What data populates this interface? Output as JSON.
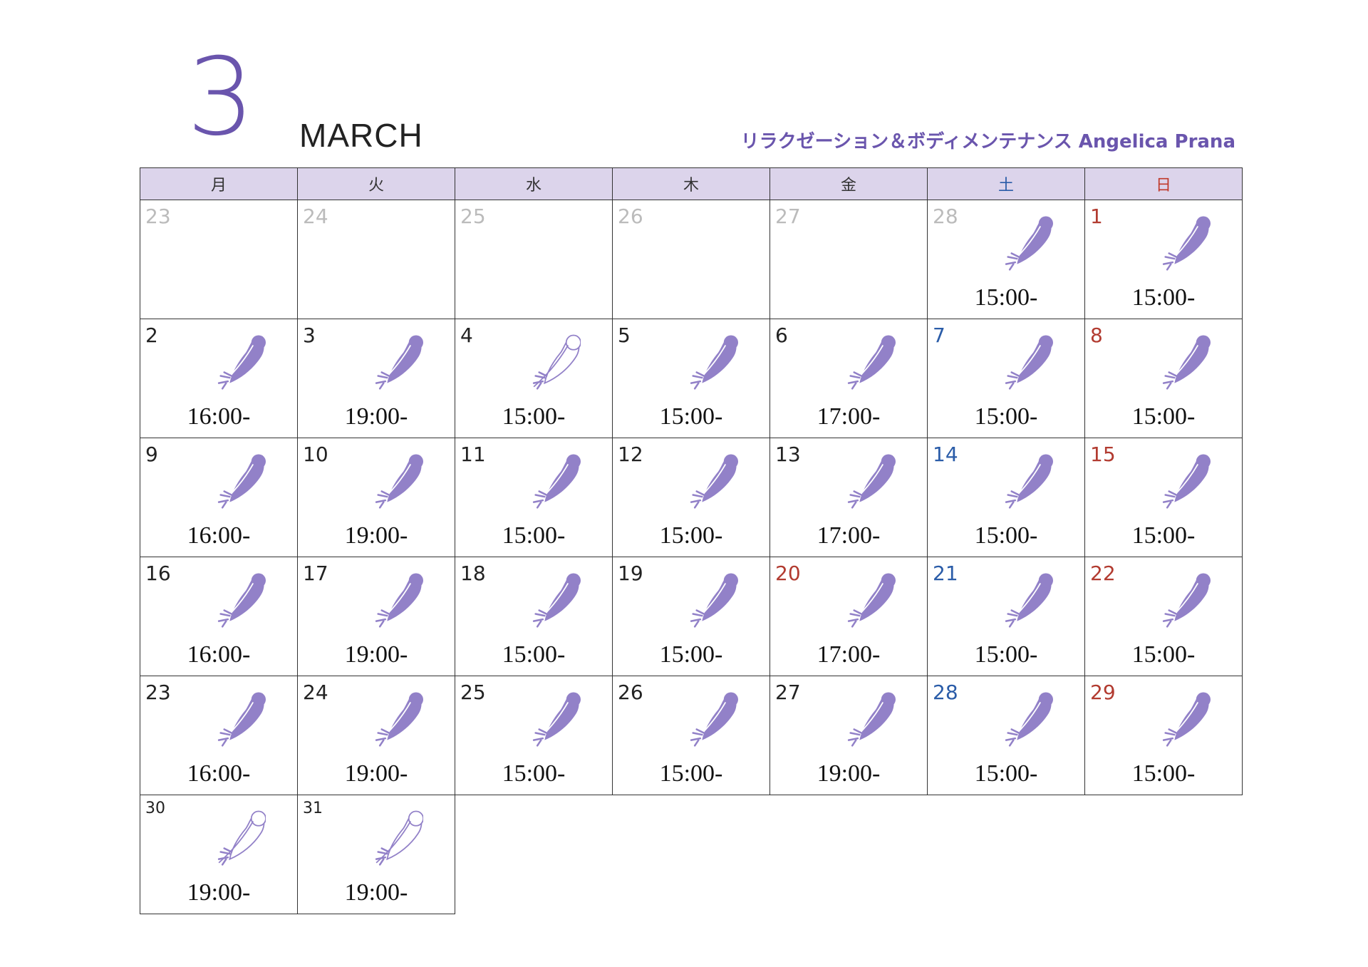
{
  "header": {
    "month_number": "3",
    "month_name": "MARCH",
    "brand": "リラクゼーション＆ボディメンテナンス Angelica Prana"
  },
  "weekdays": [
    {
      "label": "月",
      "color": "#333333"
    },
    {
      "label": "火",
      "color": "#333333"
    },
    {
      "label": "水",
      "color": "#333333"
    },
    {
      "label": "木",
      "color": "#333333"
    },
    {
      "label": "金",
      "color": "#333333"
    },
    {
      "label": "土",
      "color": "#2a5ca8"
    },
    {
      "label": "日",
      "color": "#c0392b"
    }
  ],
  "colors": {
    "accent": "#6a55ad",
    "feather_fill": "#9281c8",
    "header_bg": "#dcd4eb",
    "saturday": "#2a5ca8",
    "holiday": "#b23b30",
    "out_of_month": "#bbbbbb"
  },
  "weeks": [
    [
      {
        "day": "23",
        "status": "grey",
        "feather": "none",
        "time": ""
      },
      {
        "day": "24",
        "status": "grey",
        "feather": "none",
        "time": ""
      },
      {
        "day": "25",
        "status": "grey",
        "feather": "none",
        "time": ""
      },
      {
        "day": "26",
        "status": "grey",
        "feather": "none",
        "time": ""
      },
      {
        "day": "27",
        "status": "grey",
        "feather": "none",
        "time": ""
      },
      {
        "day": "28",
        "status": "grey",
        "feather": "filled",
        "time": "15:00-"
      },
      {
        "day": "1",
        "status": "red",
        "feather": "filled",
        "time": "15:00-"
      }
    ],
    [
      {
        "day": "2",
        "status": "normal",
        "feather": "filled",
        "time": "16:00-"
      },
      {
        "day": "3",
        "status": "normal",
        "feather": "filled",
        "time": "19:00-"
      },
      {
        "day": "4",
        "status": "normal",
        "feather": "outline",
        "time": "15:00-"
      },
      {
        "day": "5",
        "status": "normal",
        "feather": "filled",
        "time": "15:00-"
      },
      {
        "day": "6",
        "status": "normal",
        "feather": "filled",
        "time": "17:00-"
      },
      {
        "day": "7",
        "status": "blue",
        "feather": "filled",
        "time": "15:00-"
      },
      {
        "day": "8",
        "status": "red",
        "feather": "filled",
        "time": "15:00-"
      }
    ],
    [
      {
        "day": "9",
        "status": "normal",
        "feather": "filled",
        "time": "16:00-"
      },
      {
        "day": "10",
        "status": "normal",
        "feather": "filled",
        "time": "19:00-"
      },
      {
        "day": "11",
        "status": "normal",
        "feather": "filled",
        "time": "15:00-"
      },
      {
        "day": "12",
        "status": "normal",
        "feather": "filled",
        "time": "15:00-"
      },
      {
        "day": "13",
        "status": "normal",
        "feather": "filled",
        "time": "17:00-"
      },
      {
        "day": "14",
        "status": "blue",
        "feather": "filled",
        "time": "15:00-"
      },
      {
        "day": "15",
        "status": "red",
        "feather": "filled",
        "time": "15:00-"
      }
    ],
    [
      {
        "day": "16",
        "status": "normal",
        "feather": "filled",
        "time": "16:00-"
      },
      {
        "day": "17",
        "status": "normal",
        "feather": "filled",
        "time": "19:00-"
      },
      {
        "day": "18",
        "status": "normal",
        "feather": "filled",
        "time": "15:00-"
      },
      {
        "day": "19",
        "status": "normal",
        "feather": "filled",
        "time": "15:00-"
      },
      {
        "day": "20",
        "status": "red",
        "feather": "filled",
        "time": "17:00-"
      },
      {
        "day": "21",
        "status": "blue",
        "feather": "filled",
        "time": "15:00-"
      },
      {
        "day": "22",
        "status": "red",
        "feather": "filled",
        "time": "15:00-"
      }
    ],
    [
      {
        "day": "23",
        "status": "normal",
        "feather": "filled",
        "time": "16:00-"
      },
      {
        "day": "24",
        "status": "normal",
        "feather": "filled",
        "time": "19:00-"
      },
      {
        "day": "25",
        "status": "normal",
        "feather": "filled",
        "time": "15:00-"
      },
      {
        "day": "26",
        "status": "normal",
        "feather": "filled",
        "time": "15:00-"
      },
      {
        "day": "27",
        "status": "normal",
        "feather": "filled",
        "time": "19:00-"
      },
      {
        "day": "28",
        "status": "blue",
        "feather": "filled",
        "time": "15:00-"
      },
      {
        "day": "29",
        "status": "red",
        "feather": "filled",
        "time": "15:00-"
      }
    ],
    [
      {
        "day": "30",
        "status": "normal-small",
        "feather": "outline",
        "time": "19:00-"
      },
      {
        "day": "31",
        "status": "normal-small",
        "feather": "outline",
        "time": "19:00-"
      },
      null,
      null,
      null,
      null,
      null
    ]
  ]
}
